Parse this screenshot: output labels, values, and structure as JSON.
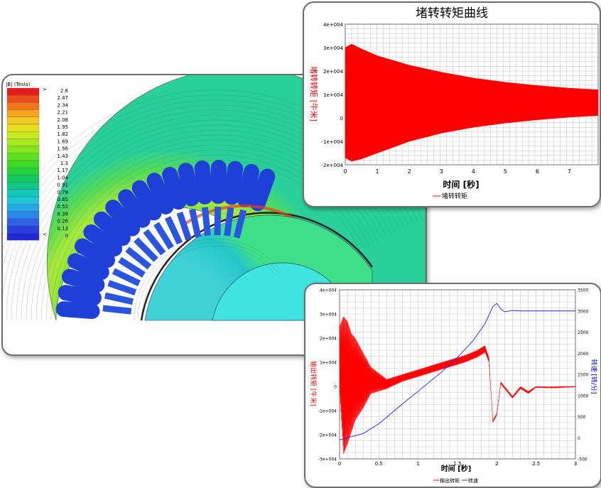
{
  "fem_plot": {
    "legend_title": "|B| (Tesla)",
    "legend_markers": {
      "top": ">",
      "bottom": "<"
    },
    "legend_values": [
      "2.6",
      "2.47",
      "2.34",
      "2.21",
      "2.08",
      "1.95",
      "1.82",
      "1.69",
      "1.56",
      "1.43",
      "1.3",
      "1.17",
      "1.04",
      "0.91",
      "0.78",
      "0.65",
      "0.52",
      "0.39",
      "0.26",
      "0.13",
      "0"
    ],
    "legend_colors": [
      "#e21c1c",
      "#ef4a18",
      "#f5761a",
      "#f7a51f",
      "#f3c820",
      "#e6e021",
      "#cbe920",
      "#a8e91e",
      "#84e61d",
      "#5fe21e",
      "#3edb28",
      "#22d33d",
      "#13cb5c",
      "#12c68a",
      "#14c8b6",
      "#1ec5d6",
      "#25a9e6",
      "#2c86ea",
      "#2f60e7",
      "#2a3fe0",
      "#1f2bd6"
    ]
  },
  "chart_data": [
    {
      "type": "line",
      "title": "堵转转矩曲线",
      "xlabel": "时间 [秒]",
      "ylabel": "堵转转矩 [牛米]",
      "x_ticks": [
        "0",
        "1",
        "2",
        "3",
        "4",
        "5",
        "6",
        "7"
      ],
      "y_ticks": [
        "4e+004",
        "3e+004",
        "2e+004",
        "1e+004",
        "0",
        "-1e+004",
        "-2e+004"
      ],
      "xlim": [
        0,
        7.9
      ],
      "ylim": [
        -20000,
        40000
      ],
      "grid": true,
      "legend": "bottom-center",
      "series": [
        {
          "name": "堵转转矩",
          "color": "#ff0000",
          "envelope_x": [
            0,
            0.2,
            0.5,
            1,
            2,
            3,
            4,
            5,
            6,
            7,
            7.9
          ],
          "envelope_upper": [
            30000,
            31500,
            29500,
            26500,
            22500,
            19500,
            17000,
            15200,
            13800,
            12700,
            12000
          ],
          "envelope_lower": [
            -17000,
            -18500,
            -17500,
            -15000,
            -10000,
            -6500,
            -4000,
            -2200,
            -800,
            300,
            1000
          ]
        }
      ]
    },
    {
      "type": "line",
      "xlabel": "时间 [秒]",
      "ylabel": "输出转矩 [牛米]",
      "y2label": "转速 [转/分]",
      "x_ticks": [
        "0",
        "0.5",
        "1",
        "1.5",
        "2",
        "2.5",
        "3"
      ],
      "y_ticks": [
        "4e+004",
        "3e+004",
        "2e+004",
        "1e+004",
        "0",
        "-1e+004",
        "-2e+004",
        "-3e+004"
      ],
      "y2_ticks": [
        "3500",
        "3000",
        "2500",
        "2000",
        "1500",
        "1000",
        "500",
        "0",
        "-500"
      ],
      "xlim": [
        0,
        3
      ],
      "ylim": [
        -30000,
        40000
      ],
      "y2lim": [
        -500,
        3500
      ],
      "grid": true,
      "legend": "bottom-center",
      "series": [
        {
          "name": "输出转矩",
          "color": "#ff0000",
          "axis": "left",
          "x": [
            0,
            0.05,
            0.1,
            0.15,
            0.2,
            0.3,
            0.4,
            0.6,
            0.8,
            1.0,
            1.2,
            1.4,
            1.6,
            1.75,
            1.85,
            1.9,
            1.95,
            2.0,
            2.05,
            2.1,
            2.2,
            2.3,
            2.4,
            2.5,
            2.7,
            3.0
          ],
          "upper": [
            25000,
            29000,
            27000,
            22000,
            20000,
            14000,
            8000,
            3000,
            5000,
            7000,
            9000,
            11000,
            13000,
            15000,
            17000,
            12000,
            -14000,
            -11000,
            2000,
            0,
            -4000,
            0,
            -2000,
            0,
            -200,
            0
          ],
          "lower": [
            -2000,
            -28000,
            -24000,
            -19000,
            -14000,
            -9000,
            -3000,
            -1000,
            2000,
            4000,
            6000,
            8000,
            10000,
            12000,
            14000,
            10000,
            -15000,
            -12000,
            1000,
            -1000,
            -5000,
            -1000,
            -3000,
            -500,
            -600,
            -200
          ]
        },
        {
          "name": "转速",
          "color": "#2020ff",
          "axis": "right",
          "x": [
            0,
            0.3,
            0.5,
            0.8,
            1.0,
            1.3,
            1.5,
            1.7,
            1.85,
            1.95,
            2.0,
            2.05,
            2.1,
            2.2,
            2.3,
            2.5,
            3.0
          ],
          "values": [
            -50,
            100,
            330,
            800,
            1100,
            1560,
            1900,
            2300,
            2700,
            3100,
            3180,
            3050,
            2980,
            3010,
            3000,
            3000,
            3000
          ]
        }
      ]
    }
  ]
}
